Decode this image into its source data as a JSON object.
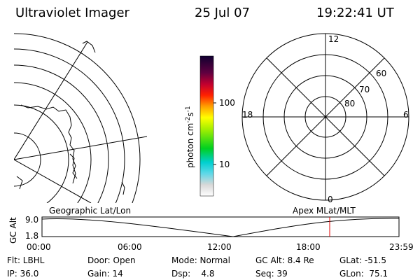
{
  "header": {
    "title": "Ultraviolet Imager",
    "date": "25 Jul 07",
    "time": "19:22:41 UT"
  },
  "colorbar": {
    "label": "photon cm",
    "label_exp1": "-2",
    "label_mid": "s",
    "label_exp2": "-1",
    "ticks": [
      "100",
      "10"
    ]
  },
  "polar": {
    "mlt_labels": [
      "12",
      "0",
      "18",
      "6"
    ],
    "lat_labels": [
      "60",
      "70",
      "80"
    ]
  },
  "timeline": {
    "left_title": "Geographic Lat/Lon",
    "right_title": "Apex MLat/MLT",
    "axis_label": "GC Alt",
    "alt_ticks": [
      "9.0",
      "1.8"
    ],
    "time_ticks": [
      "00:00",
      "06:00",
      "12:00",
      "18:00",
      "23:59"
    ]
  },
  "status": {
    "rows": [
      [
        "Flt: LBHL",
        "Door: Open",
        "Mode: Normal",
        "GC Alt: 8.4 Re",
        "GLat: -51.5"
      ],
      [
        "IP: 36.0",
        "Gain: 14",
        "Dsp:    4.8",
        "Seq: 39",
        "GLon:  75.1"
      ]
    ]
  }
}
